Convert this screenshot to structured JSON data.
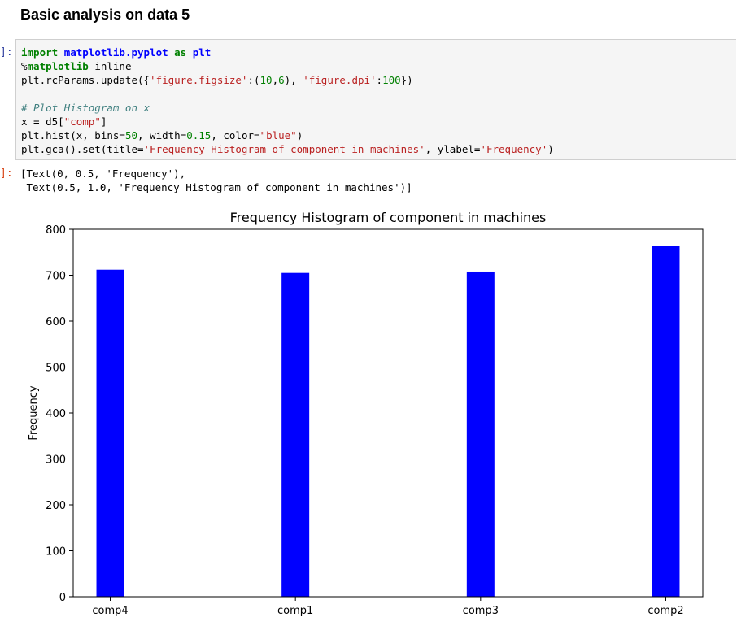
{
  "notebook": {
    "heading": "Basic analysis on data 5",
    "input_prompt": "]:",
    "output_prompt": "]:",
    "code_lines": [
      [
        {
          "t": "import",
          "c": "kw"
        },
        {
          "t": " "
        },
        {
          "t": "matplotlib.pyplot",
          "c": "mod"
        },
        {
          "t": " "
        },
        {
          "t": "as",
          "c": "kw"
        },
        {
          "t": " "
        },
        {
          "t": "plt",
          "c": "mod"
        }
      ],
      [
        {
          "t": "%"
        },
        {
          "t": "matplotlib",
          "c": "kw"
        },
        {
          "t": " inline"
        }
      ],
      [
        {
          "t": "plt.rcParams.update({"
        },
        {
          "t": "'figure.figsize'",
          "c": "str"
        },
        {
          "t": ":("
        },
        {
          "t": "10",
          "c": "num"
        },
        {
          "t": ","
        },
        {
          "t": "6",
          "c": "num"
        },
        {
          "t": "), "
        },
        {
          "t": "'figure.dpi'",
          "c": "str"
        },
        {
          "t": ":"
        },
        {
          "t": "100",
          "c": "num"
        },
        {
          "t": "})"
        }
      ],
      [],
      [
        {
          "t": "# Plot Histogram on x",
          "c": "cm"
        }
      ],
      [
        {
          "t": "x = d5["
        },
        {
          "t": "\"comp\"",
          "c": "str"
        },
        {
          "t": "]"
        }
      ],
      [
        {
          "t": "plt.hist(x, bins="
        },
        {
          "t": "50",
          "c": "num"
        },
        {
          "t": ", width="
        },
        {
          "t": "0.15",
          "c": "num"
        },
        {
          "t": ", color="
        },
        {
          "t": "\"blue\"",
          "c": "str"
        },
        {
          "t": ")"
        }
      ],
      [
        {
          "t": "plt.gca().set(title="
        },
        {
          "t": "'Frequency Histogram of component in machines'",
          "c": "str"
        },
        {
          "t": ", ylabel="
        },
        {
          "t": "'Frequency'",
          "c": "str"
        },
        {
          "t": ")"
        }
      ]
    ],
    "output_lines": [
      "[Text(0, 0.5, 'Frequency'),",
      " Text(0.5, 1.0, 'Frequency Histogram of component in machines')]"
    ]
  },
  "chart_data": {
    "type": "bar",
    "title": "Frequency Histogram of component in machines",
    "xlabel": "",
    "ylabel": "Frequency",
    "categories": [
      "comp4",
      "comp1",
      "comp3",
      "comp2"
    ],
    "values": [
      712,
      705,
      708,
      763
    ],
    "ylim": [
      0,
      800
    ],
    "yticks": [
      0,
      100,
      200,
      300,
      400,
      500,
      600,
      700,
      800
    ],
    "bar_color": "#0000ff",
    "grid": false
  }
}
